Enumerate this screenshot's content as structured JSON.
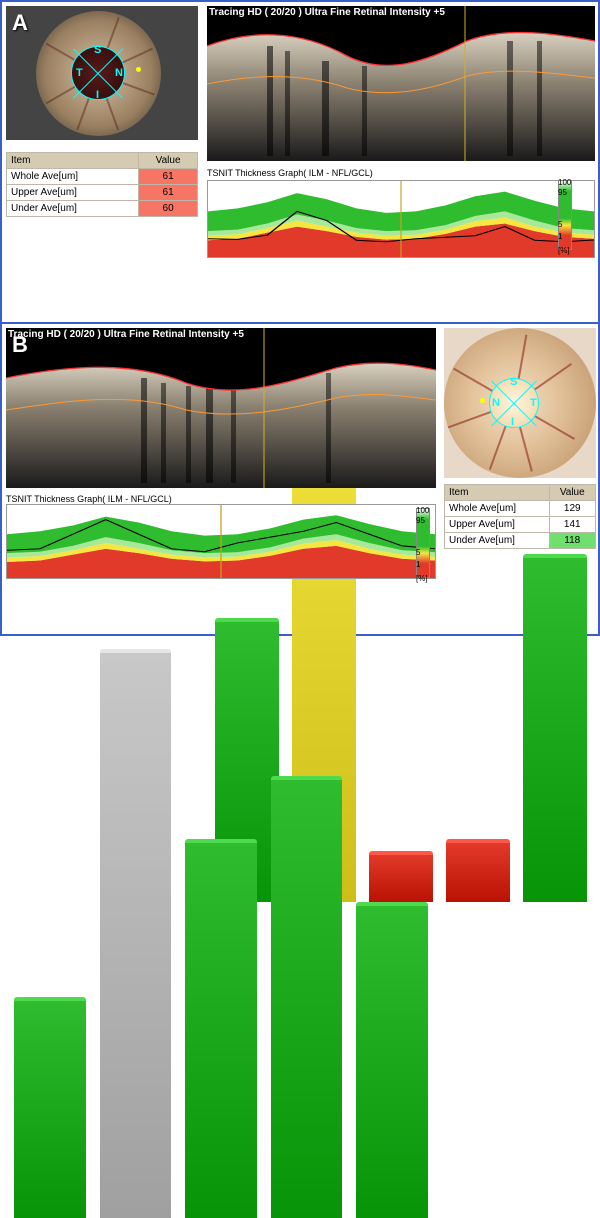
{
  "colors": {
    "frame": "#3a5fcd",
    "green": "#2fbc2f",
    "green_light": "#6fe06f",
    "yellow": "#f5e642",
    "red": "#e23a2a",
    "red_light": "#f77564",
    "silver": "#c8c8c8",
    "cyan": "#00e5ff",
    "ilm_line": "#ff3030",
    "nfl_line": "#ff9933"
  },
  "scale": {
    "labels": [
      "100",
      "95",
      "5",
      "1",
      "[%]"
    ]
  },
  "tsnit_label": "TSNIT Thickness Graph( ILM - NFL/GCL)",
  "A": {
    "bscan_title": "Tracing HD ( 20/20 )  Ultra Fine Retinal Intensity +5",
    "disc_sectors": {
      "top": "S",
      "right": "N",
      "bottom": "I",
      "left": "T"
    },
    "table": {
      "headers": [
        "Item",
        "Value"
      ],
      "rows": [
        {
          "item": "Whole Ave[um]",
          "value": "61",
          "bg": "#f77564"
        },
        {
          "item": "Upper Ave[um]",
          "value": "61",
          "bg": "#f77564"
        },
        {
          "item": "Under Ave[um]",
          "value": "60",
          "bg": "#f77564"
        }
      ]
    },
    "tsnit": {
      "y_max": 250,
      "y_ticks": [
        0,
        50,
        100,
        150,
        200,
        250
      ],
      "green_upper": [
        150,
        160,
        180,
        210,
        190,
        160,
        145,
        150,
        170,
        200,
        215,
        185,
        160,
        150
      ],
      "green_lower": [
        85,
        90,
        110,
        140,
        120,
        95,
        85,
        88,
        105,
        135,
        150,
        120,
        95,
        88
      ],
      "yellow_lower": [
        70,
        75,
        95,
        120,
        100,
        80,
        70,
        73,
        90,
        118,
        130,
        100,
        80,
        73
      ],
      "red_lower": [
        55,
        60,
        80,
        100,
        85,
        66,
        57,
        60,
        76,
        100,
        110,
        85,
        66,
        60
      ],
      "patient": [
        60,
        58,
        72,
        150,
        120,
        55,
        50,
        60,
        65,
        70,
        100,
        55,
        50,
        56
      ]
    },
    "sector_bars": [
      {
        "color": "#2fbc2f",
        "h": 0.45
      },
      {
        "color": "#f5e642",
        "h": 0.85
      },
      {
        "color": "#e23a2a",
        "h": 0.08
      },
      {
        "color": "#e23a2a",
        "h": 0.1
      },
      {
        "color": "#2fbc2f",
        "h": 0.55
      }
    ]
  },
  "B": {
    "bscan_title": "Tracing HD ( 20/20 )  Ultra Fine Retinal Intensity +5",
    "disc_sectors": {
      "top": "S",
      "right": "T",
      "bottom": "I",
      "left": "N"
    },
    "table": {
      "headers": [
        "Item",
        "Value"
      ],
      "rows": [
        {
          "item": "Whole Ave[um]",
          "value": "129",
          "bg": "#ffffff"
        },
        {
          "item": "Upper Ave[um]",
          "value": "141",
          "bg": "#ffffff"
        },
        {
          "item": "Under Ave[um]",
          "value": "118",
          "bg": "#6fe06f"
        }
      ]
    },
    "tsnit": {
      "y_max": 250,
      "y_ticks": [
        0,
        50,
        100,
        150,
        200,
        250
      ],
      "green_upper": [
        150,
        160,
        180,
        210,
        190,
        160,
        145,
        150,
        170,
        200,
        215,
        185,
        160,
        150
      ],
      "green_lower": [
        85,
        90,
        110,
        140,
        120,
        95,
        85,
        88,
        105,
        135,
        150,
        120,
        95,
        88
      ],
      "yellow_lower": [
        70,
        75,
        95,
        120,
        100,
        80,
        70,
        73,
        90,
        118,
        130,
        100,
        80,
        73
      ],
      "red_lower": [
        55,
        60,
        80,
        100,
        85,
        66,
        57,
        60,
        76,
        100,
        110,
        85,
        66,
        60
      ],
      "patient": [
        95,
        100,
        150,
        200,
        150,
        100,
        90,
        120,
        140,
        160,
        190,
        150,
        110,
        100
      ]
    },
    "sector_bars": [
      {
        "color": "#2fbc2f",
        "h": 0.35
      },
      {
        "color": "#c8c8c8",
        "h": 0.9
      },
      {
        "color": "#2fbc2f",
        "h": 0.6
      },
      {
        "color": "#2fbc2f",
        "h": 0.7
      },
      {
        "color": "#2fbc2f",
        "h": 0.5
      }
    ]
  }
}
